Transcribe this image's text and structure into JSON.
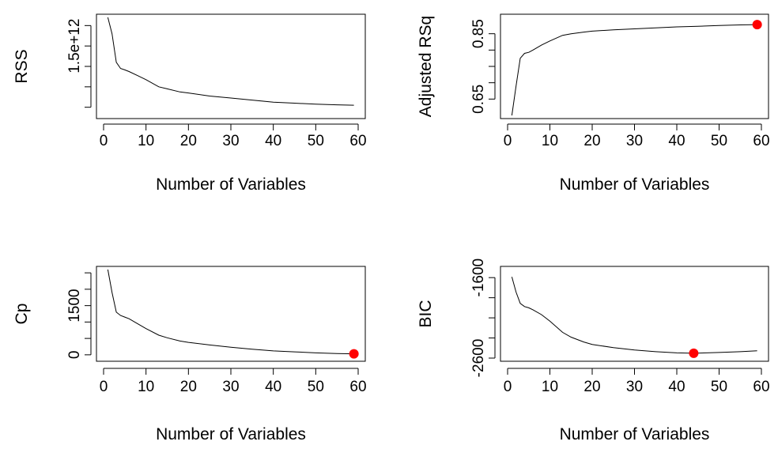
{
  "chart_data": [
    {
      "type": "line",
      "xlabel": "Number of Variables",
      "ylabel": "RSS",
      "xlim": [
        0,
        60
      ],
      "ylim": [
        1160000000000.0,
        1640000000000.0
      ],
      "xticks": [
        0,
        10,
        20,
        30,
        40,
        50,
        60
      ],
      "yticks": [
        1200000000000.0,
        1300000000000.0,
        1400000000000.0,
        1500000000000.0,
        1600000000000.0
      ],
      "ytick_labels": [
        "",
        "",
        "",
        "1.5e+12",
        ""
      ],
      "x": [
        1,
        2,
        3,
        4,
        5,
        6,
        8,
        10,
        13,
        15,
        18,
        20,
        25,
        30,
        35,
        40,
        45,
        50,
        55,
        59
      ],
      "y": [
        1640000000000.0,
        1560000000000.0,
        1420000000000.0,
        1390000000000.0,
        1383000000000.0,
        1375000000000.0,
        1355000000000.0,
        1335000000000.0,
        1300000000000.0,
        1290000000000.0,
        1275000000000.0,
        1270000000000.0,
        1255000000000.0,
        1245000000000.0,
        1235000000000.0,
        1225000000000.0,
        1220000000000.0,
        1215000000000.0,
        1212000000000.0,
        1210000000000.0
      ],
      "highlight": null
    },
    {
      "type": "line",
      "xlabel": "Number of Variables",
      "ylabel": "Adjusted RSq",
      "xlim": [
        0,
        60
      ],
      "ylim": [
        0.6,
        0.9
      ],
      "xticks": [
        0,
        10,
        20,
        30,
        40,
        50,
        60
      ],
      "yticks": [
        0.65,
        0.7,
        0.75,
        0.8,
        0.85
      ],
      "ytick_labels": [
        "0.65",
        "",
        "",
        "",
        "0.85"
      ],
      "x": [
        1,
        2,
        3,
        4,
        5,
        6,
        8,
        10,
        13,
        15,
        18,
        20,
        25,
        30,
        35,
        40,
        45,
        50,
        55,
        59
      ],
      "y": [
        0.6,
        0.69,
        0.775,
        0.79,
        0.793,
        0.8,
        0.815,
        0.828,
        0.845,
        0.85,
        0.855,
        0.858,
        0.862,
        0.865,
        0.868,
        0.871,
        0.873,
        0.875,
        0.877,
        0.878
      ],
      "highlight": {
        "x": 59,
        "y": 0.878,
        "color": "#ff0000"
      }
    },
    {
      "type": "line",
      "xlabel": "Number of Variables",
      "ylabel": "Cp",
      "xlim": [
        0,
        60
      ],
      "ylim": [
        -100,
        2600
      ],
      "xticks": [
        0,
        10,
        20,
        30,
        40,
        50,
        60
      ],
      "yticks": [
        0,
        500,
        1000,
        1500,
        2000,
        2500
      ],
      "ytick_labels": [
        "0",
        "",
        "",
        "1500",
        "",
        ""
      ],
      "x": [
        1,
        2,
        3,
        4,
        5,
        6,
        8,
        10,
        13,
        15,
        18,
        20,
        25,
        30,
        35,
        40,
        45,
        50,
        55,
        59
      ],
      "y": [
        2600,
        1900,
        1300,
        1200,
        1150,
        1100,
        950,
        800,
        600,
        520,
        420,
        380,
        300,
        230,
        170,
        120,
        90,
        60,
        40,
        30
      ],
      "highlight": {
        "x": 59,
        "y": 30,
        "color": "#ff0000"
      }
    },
    {
      "type": "line",
      "xlabel": "Number of Variables",
      "ylabel": "BIC",
      "xlim": [
        0,
        60
      ],
      "ylim": [
        -2600,
        -1500
      ],
      "xticks": [
        0,
        10,
        20,
        30,
        40,
        50,
        60
      ],
      "yticks": [
        -2600,
        -2350,
        -2100,
        -1850,
        -1600
      ],
      "ytick_labels": [
        "-2600",
        "",
        "",
        "",
        "-1600"
      ],
      "x": [
        1,
        2,
        3,
        4,
        5,
        6,
        8,
        10,
        13,
        15,
        18,
        20,
        25,
        30,
        35,
        40,
        44,
        50,
        55,
        59
      ],
      "y": [
        -1590,
        -1780,
        -1920,
        -1960,
        -1975,
        -2000,
        -2060,
        -2140,
        -2280,
        -2340,
        -2400,
        -2430,
        -2470,
        -2500,
        -2520,
        -2535,
        -2540,
        -2530,
        -2520,
        -2510
      ],
      "highlight": {
        "x": 44,
        "y": -2540,
        "color": "#ff0000"
      }
    }
  ]
}
